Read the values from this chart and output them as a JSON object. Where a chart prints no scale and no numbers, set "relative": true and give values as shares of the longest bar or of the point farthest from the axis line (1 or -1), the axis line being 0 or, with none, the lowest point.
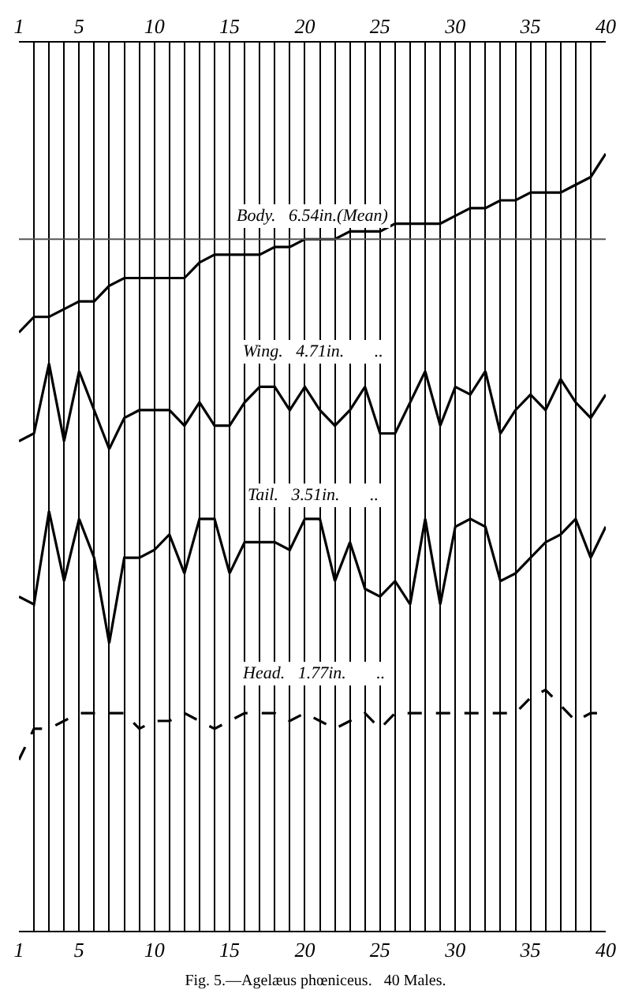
{
  "chart_data": {
    "type": "line",
    "title": "Fig. 5.—Agelæus phœniceus.   40 Males.",
    "relative": true,
    "x": [
      1,
      2,
      3,
      4,
      5,
      6,
      7,
      8,
      9,
      10,
      11,
      12,
      13,
      14,
      15,
      16,
      17,
      18,
      19,
      20,
      21,
      22,
      23,
      24,
      25,
      26,
      27,
      28,
      29,
      30,
      31,
      32,
      33,
      34,
      35,
      36,
      37,
      38,
      39,
      40
    ],
    "xlim": [
      1,
      40
    ],
    "xticks": [
      1,
      5,
      10,
      15,
      20,
      25,
      30,
      35,
      40
    ],
    "x2lim": [
      1,
      40
    ],
    "x2ticks": [
      1,
      5,
      10,
      15,
      20,
      25,
      30,
      35,
      40
    ],
    "grid": "x",
    "marker": "none",
    "line_style": "solid",
    "series": [
      {
        "color": "#000000",
        "values": [
          0.77,
          0.79,
          0.79,
          0.8,
          0.81,
          0.81,
          0.83,
          0.84,
          0.84,
          0.84,
          0.84,
          0.84,
          0.86,
          0.87,
          0.87,
          0.87,
          0.87,
          0.88,
          0.88,
          0.89,
          0.89,
          0.89,
          0.9,
          0.9,
          0.9,
          0.91,
          0.91,
          0.91,
          0.91,
          0.92,
          0.93,
          0.93,
          0.94,
          0.94,
          0.95,
          0.95,
          0.95,
          0.96,
          0.97,
          1.0
        ]
      },
      {
        "color": "#000000",
        "values": [
          0.63,
          0.64,
          0.73,
          0.63,
          0.72,
          0.67,
          0.62,
          0.66,
          0.67,
          0.67,
          0.67,
          0.65,
          0.68,
          0.65,
          0.65,
          0.68,
          0.7,
          0.7,
          0.67,
          0.7,
          0.67,
          0.65,
          0.67,
          0.7,
          0.64,
          0.64,
          0.68,
          0.72,
          0.65,
          0.7,
          0.69,
          0.72,
          0.64,
          0.67,
          0.69,
          0.67,
          0.71,
          0.68,
          0.66,
          0.69
        ]
      },
      {
        "color": "#000000",
        "values": [
          0.43,
          0.42,
          0.54,
          0.45,
          0.53,
          0.48,
          0.37,
          0.48,
          0.48,
          0.49,
          0.51,
          0.46,
          0.53,
          0.53,
          0.46,
          0.5,
          0.5,
          0.5,
          0.49,
          0.53,
          0.53,
          0.45,
          0.5,
          0.44,
          0.43,
          0.45,
          0.42,
          0.53,
          0.42,
          0.52,
          0.53,
          0.52,
          0.45,
          0.46,
          0.48,
          0.5,
          0.51,
          0.53,
          0.48,
          0.52
        ]
      },
      {
        "color": "#000000",
        "line_style": "dashed",
        "values": [
          0.22,
          0.26,
          0.26,
          0.27,
          0.28,
          0.28,
          0.28,
          0.28,
          0.26,
          0.27,
          0.27,
          0.28,
          0.27,
          0.26,
          0.27,
          0.28,
          0.28,
          0.28,
          0.27,
          0.28,
          0.27,
          0.26,
          0.27,
          0.28,
          0.26,
          0.28,
          0.28,
          0.28,
          0.28,
          0.28,
          0.28,
          0.28,
          0.28,
          0.28,
          0.3,
          0.31,
          0.29,
          0.27,
          0.28,
          0.28
        ]
      }
    ],
    "ref_lines": [
      {
        "axis": "y",
        "value": 0.89,
        "color": "#555555"
      }
    ],
    "annotations": [
      "Body.   6.54in.(Mean)",
      "Wing.   4.71in.       ..",
      "Tail.   3.51in.       ..",
      "Head.   1.77in.       .."
    ]
  }
}
